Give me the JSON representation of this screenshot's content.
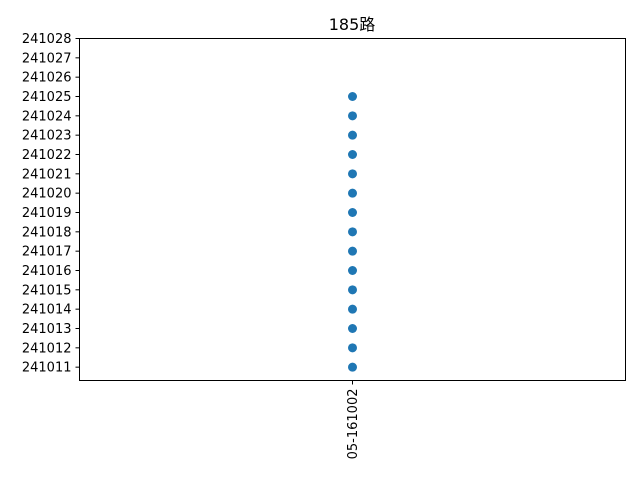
{
  "chart_data": {
    "type": "scatter",
    "title": "185路",
    "xlabel": "",
    "ylabel": "",
    "categories": [
      "05-161002"
    ],
    "y_ticks": [
      "241011",
      "241012",
      "241013",
      "241014",
      "241015",
      "241016",
      "241017",
      "241018",
      "241019",
      "241020",
      "241021",
      "241022",
      "241023",
      "241024",
      "241025",
      "241026",
      "241027",
      "241028"
    ],
    "series": [
      {
        "color": "#1f77b4",
        "points": [
          {
            "x": "05-161002",
            "y": "241011"
          },
          {
            "x": "05-161002",
            "y": "241012"
          },
          {
            "x": "05-161002",
            "y": "241013"
          },
          {
            "x": "05-161002",
            "y": "241014"
          },
          {
            "x": "05-161002",
            "y": "241015"
          },
          {
            "x": "05-161002",
            "y": "241016"
          },
          {
            "x": "05-161002",
            "y": "241017"
          },
          {
            "x": "05-161002",
            "y": "241018"
          },
          {
            "x": "05-161002",
            "y": "241019"
          },
          {
            "x": "05-161002",
            "y": "241020"
          },
          {
            "x": "05-161002",
            "y": "241021"
          },
          {
            "x": "05-161002",
            "y": "241022"
          },
          {
            "x": "05-161002",
            "y": "241023"
          },
          {
            "x": "05-161002",
            "y": "241024"
          },
          {
            "x": "05-161002",
            "y": "241025"
          }
        ]
      }
    ],
    "grid": false,
    "legend": "none"
  }
}
